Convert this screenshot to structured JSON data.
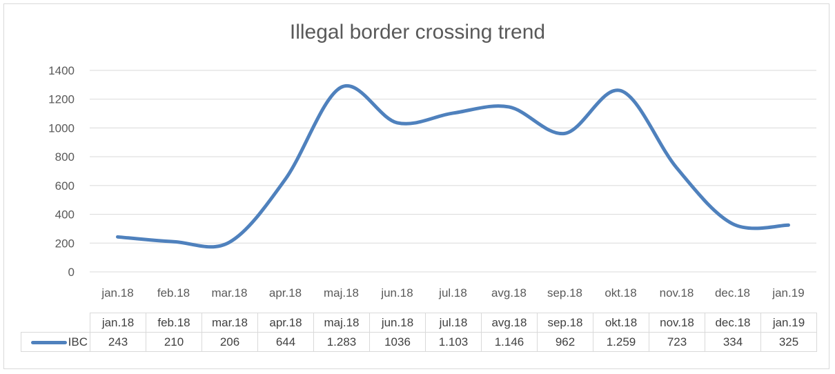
{
  "chart_data": {
    "type": "line",
    "title": "Illegal border crossing trend",
    "categories": [
      "jan.18",
      "feb.18",
      "mar.18",
      "apr.18",
      "maj.18",
      "jun.18",
      "jul.18",
      "avg.18",
      "sep.18",
      "okt.18",
      "nov.18",
      "dec.18",
      "jan.19"
    ],
    "series": [
      {
        "name": "IBC",
        "values": [
          243,
          210,
          206,
          644,
          1283,
          1036,
          1103,
          1146,
          962,
          1259,
          723,
          334,
          325
        ],
        "value_labels": [
          "243",
          "210",
          "206",
          "644",
          "1.283",
          "1036",
          "1.103",
          "1.146",
          "962",
          "1.259",
          "723",
          "334",
          "325"
        ],
        "color": "#4f81bd"
      }
    ],
    "y_ticks": [
      "0",
      "200",
      "400",
      "600",
      "800",
      "1000",
      "1200",
      "1400"
    ],
    "ylim": [
      0,
      1400
    ],
    "grid": true,
    "smooth": true,
    "data_table": true
  }
}
